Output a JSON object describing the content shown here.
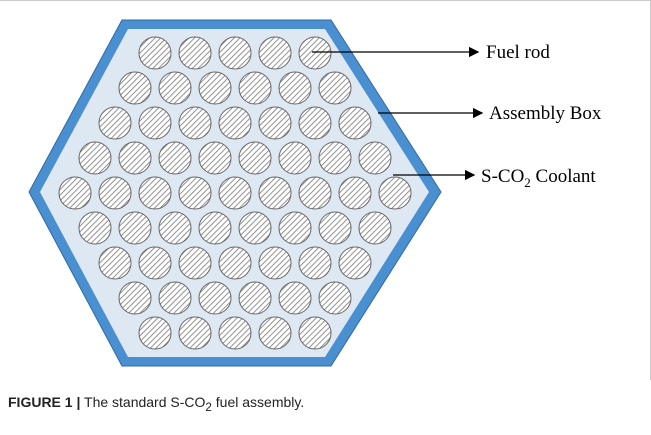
{
  "labels": [
    {
      "parts": [
        "Fuel rod"
      ]
    },
    {
      "parts": [
        "Assembly Box"
      ]
    },
    {
      "parts": [
        "S-CO",
        "2",
        " Coolant"
      ]
    }
  ],
  "caption": {
    "figure": "FIGURE 1 |",
    "parts": [
      " The standard S-CO",
      "2",
      " fuel assembly."
    ]
  }
}
